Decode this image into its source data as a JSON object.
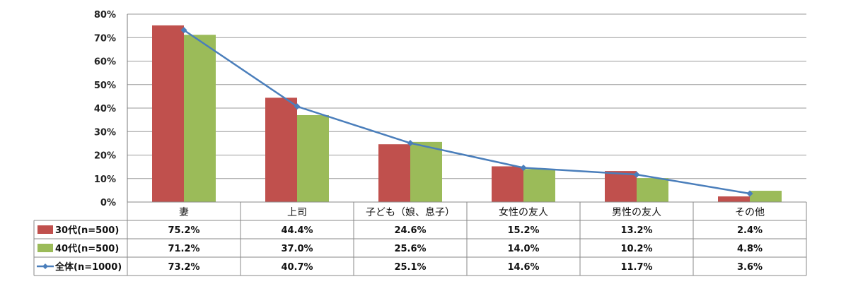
{
  "chart_data": {
    "type": "bar",
    "categories": [
      "妻",
      "上司",
      "子ども（娘、息子）",
      "女性の友人",
      "男性の友人",
      "その他"
    ],
    "series": [
      {
        "name": "30代(n=500)",
        "kind": "bar",
        "color": "#c0504d",
        "values": [
          75.2,
          44.4,
          24.6,
          15.2,
          13.2,
          2.4
        ],
        "labels": [
          "75.2%",
          "44.4%",
          "24.6%",
          "15.2%",
          "13.2%",
          "2.4%"
        ]
      },
      {
        "name": "40代(n=500)",
        "kind": "bar",
        "color": "#9bbb59",
        "values": [
          71.2,
          37.0,
          25.6,
          14.0,
          10.2,
          4.8
        ],
        "labels": [
          "71.2%",
          "37.0%",
          "25.6%",
          "14.0%",
          "10.2%",
          "4.8%"
        ]
      },
      {
        "name": "全体(n=1000)",
        "kind": "line",
        "color": "#4a7ebb",
        "values": [
          73.2,
          40.7,
          25.1,
          14.6,
          11.7,
          3.6
        ],
        "labels": [
          "73.2%",
          "40.7%",
          "25.1%",
          "14.6%",
          "11.7%",
          "3.6%"
        ]
      }
    ],
    "yticks": [
      "0%",
      "10%",
      "20%",
      "30%",
      "40%",
      "50%",
      "60%",
      "70%",
      "80%"
    ],
    "ylim": [
      0,
      80
    ],
    "grid": true,
    "legend": "data-table"
  }
}
